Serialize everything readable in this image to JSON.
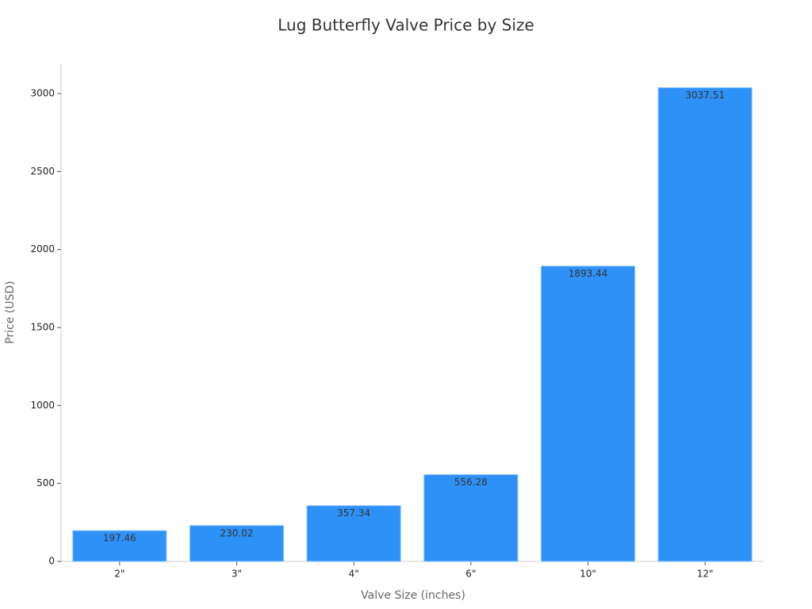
{
  "chart_data": {
    "type": "bar",
    "title": "Lug Butterfly Valve Price by Size",
    "x_label": "Valve Size (inches)",
    "y_label": "Price (USD)",
    "categories": [
      "2\"",
      "3\"",
      "4\"",
      "6\"",
      "10\"",
      "12\""
    ],
    "values": [
      197.46,
      230.02,
      357.34,
      556.28,
      1893.44,
      3037.51
    ],
    "color": "#2e91f7",
    "ylim": [
      0,
      3189.39
    ],
    "yticks": [
      0,
      500,
      1000,
      1500,
      2000,
      2500,
      3000
    ],
    "grid": false,
    "data_labels": true
  }
}
